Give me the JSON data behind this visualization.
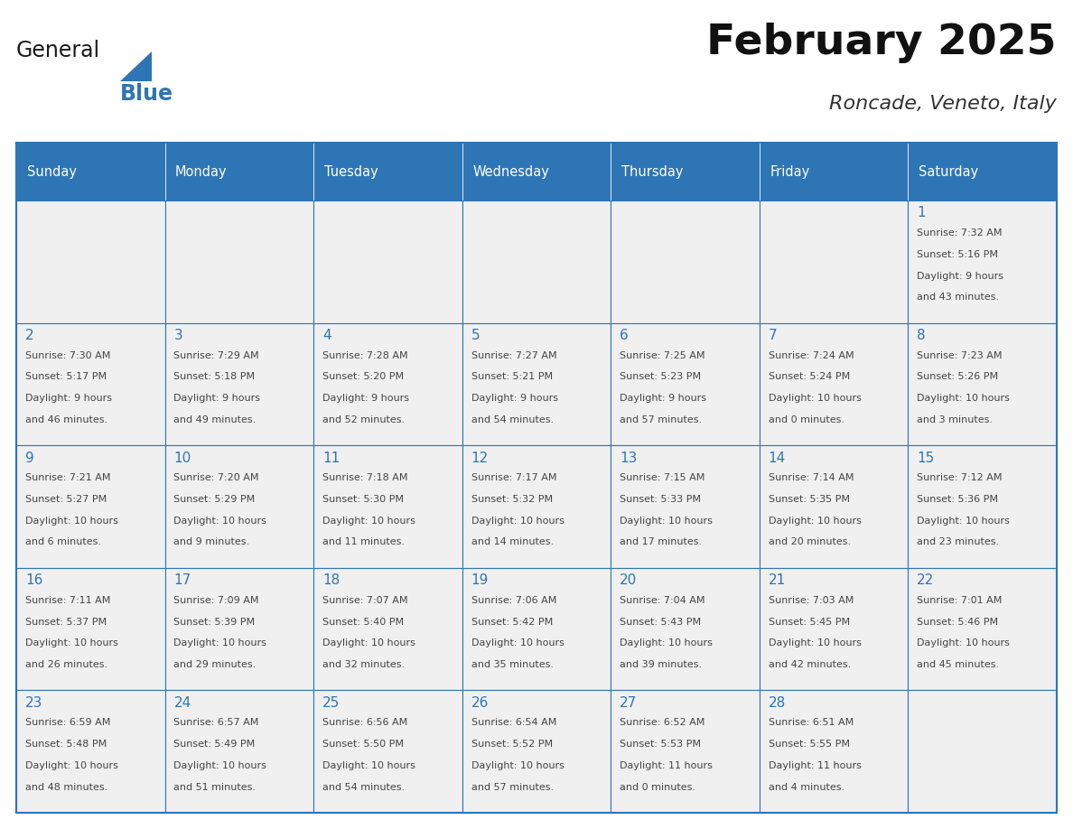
{
  "title": "February 2025",
  "subtitle": "Roncade, Veneto, Italy",
  "header_bg": "#2E75B6",
  "header_text_color": "#FFFFFF",
  "cell_bg": "#F0F0F0",
  "border_color": "#2E75B6",
  "day_number_color": "#2E75B6",
  "text_color": "#444444",
  "days_of_week": [
    "Sunday",
    "Monday",
    "Tuesday",
    "Wednesday",
    "Thursday",
    "Friday",
    "Saturday"
  ],
  "calendar_data": [
    [
      {
        "day": "",
        "info": ""
      },
      {
        "day": "",
        "info": ""
      },
      {
        "day": "",
        "info": ""
      },
      {
        "day": "",
        "info": ""
      },
      {
        "day": "",
        "info": ""
      },
      {
        "day": "",
        "info": ""
      },
      {
        "day": "1",
        "info": "Sunrise: 7:32 AM\nSunset: 5:16 PM\nDaylight: 9 hours\nand 43 minutes."
      }
    ],
    [
      {
        "day": "2",
        "info": "Sunrise: 7:30 AM\nSunset: 5:17 PM\nDaylight: 9 hours\nand 46 minutes."
      },
      {
        "day": "3",
        "info": "Sunrise: 7:29 AM\nSunset: 5:18 PM\nDaylight: 9 hours\nand 49 minutes."
      },
      {
        "day": "4",
        "info": "Sunrise: 7:28 AM\nSunset: 5:20 PM\nDaylight: 9 hours\nand 52 minutes."
      },
      {
        "day": "5",
        "info": "Sunrise: 7:27 AM\nSunset: 5:21 PM\nDaylight: 9 hours\nand 54 minutes."
      },
      {
        "day": "6",
        "info": "Sunrise: 7:25 AM\nSunset: 5:23 PM\nDaylight: 9 hours\nand 57 minutes."
      },
      {
        "day": "7",
        "info": "Sunrise: 7:24 AM\nSunset: 5:24 PM\nDaylight: 10 hours\nand 0 minutes."
      },
      {
        "day": "8",
        "info": "Sunrise: 7:23 AM\nSunset: 5:26 PM\nDaylight: 10 hours\nand 3 minutes."
      }
    ],
    [
      {
        "day": "9",
        "info": "Sunrise: 7:21 AM\nSunset: 5:27 PM\nDaylight: 10 hours\nand 6 minutes."
      },
      {
        "day": "10",
        "info": "Sunrise: 7:20 AM\nSunset: 5:29 PM\nDaylight: 10 hours\nand 9 minutes."
      },
      {
        "day": "11",
        "info": "Sunrise: 7:18 AM\nSunset: 5:30 PM\nDaylight: 10 hours\nand 11 minutes."
      },
      {
        "day": "12",
        "info": "Sunrise: 7:17 AM\nSunset: 5:32 PM\nDaylight: 10 hours\nand 14 minutes."
      },
      {
        "day": "13",
        "info": "Sunrise: 7:15 AM\nSunset: 5:33 PM\nDaylight: 10 hours\nand 17 minutes."
      },
      {
        "day": "14",
        "info": "Sunrise: 7:14 AM\nSunset: 5:35 PM\nDaylight: 10 hours\nand 20 minutes."
      },
      {
        "day": "15",
        "info": "Sunrise: 7:12 AM\nSunset: 5:36 PM\nDaylight: 10 hours\nand 23 minutes."
      }
    ],
    [
      {
        "day": "16",
        "info": "Sunrise: 7:11 AM\nSunset: 5:37 PM\nDaylight: 10 hours\nand 26 minutes."
      },
      {
        "day": "17",
        "info": "Sunrise: 7:09 AM\nSunset: 5:39 PM\nDaylight: 10 hours\nand 29 minutes."
      },
      {
        "day": "18",
        "info": "Sunrise: 7:07 AM\nSunset: 5:40 PM\nDaylight: 10 hours\nand 32 minutes."
      },
      {
        "day": "19",
        "info": "Sunrise: 7:06 AM\nSunset: 5:42 PM\nDaylight: 10 hours\nand 35 minutes."
      },
      {
        "day": "20",
        "info": "Sunrise: 7:04 AM\nSunset: 5:43 PM\nDaylight: 10 hours\nand 39 minutes."
      },
      {
        "day": "21",
        "info": "Sunrise: 7:03 AM\nSunset: 5:45 PM\nDaylight: 10 hours\nand 42 minutes."
      },
      {
        "day": "22",
        "info": "Sunrise: 7:01 AM\nSunset: 5:46 PM\nDaylight: 10 hours\nand 45 minutes."
      }
    ],
    [
      {
        "day": "23",
        "info": "Sunrise: 6:59 AM\nSunset: 5:48 PM\nDaylight: 10 hours\nand 48 minutes."
      },
      {
        "day": "24",
        "info": "Sunrise: 6:57 AM\nSunset: 5:49 PM\nDaylight: 10 hours\nand 51 minutes."
      },
      {
        "day": "25",
        "info": "Sunrise: 6:56 AM\nSunset: 5:50 PM\nDaylight: 10 hours\nand 54 minutes."
      },
      {
        "day": "26",
        "info": "Sunrise: 6:54 AM\nSunset: 5:52 PM\nDaylight: 10 hours\nand 57 minutes."
      },
      {
        "day": "27",
        "info": "Sunrise: 6:52 AM\nSunset: 5:53 PM\nDaylight: 11 hours\nand 0 minutes."
      },
      {
        "day": "28",
        "info": "Sunrise: 6:51 AM\nSunset: 5:55 PM\nDaylight: 11 hours\nand 4 minutes."
      },
      {
        "day": "",
        "info": ""
      }
    ]
  ],
  "logo_general_color": "#1a1a1a",
  "logo_blue_color": "#2E75B6",
  "fig_width": 11.88,
  "fig_height": 9.18,
  "dpi": 100
}
